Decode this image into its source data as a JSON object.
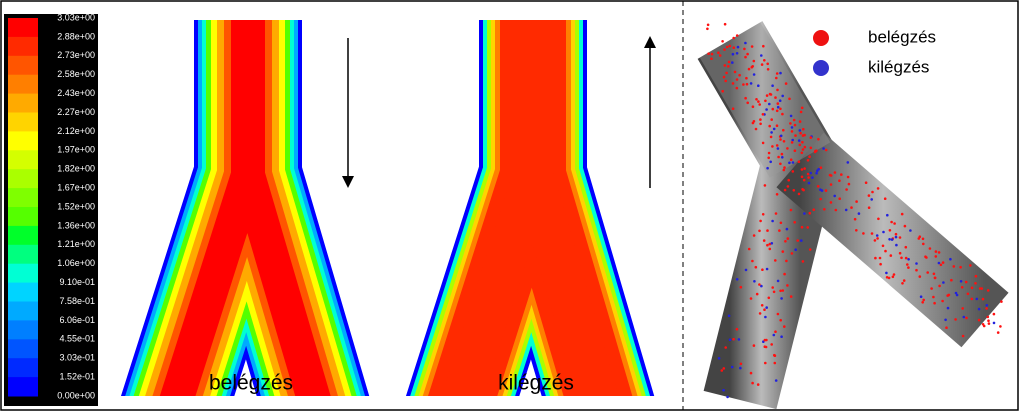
{
  "colorbar": {
    "labels": [
      "3.03e+00",
      "2.88e+00",
      "2.73e+00",
      "2.58e+00",
      "2.43e+00",
      "2.27e+00",
      "2.12e+00",
      "1.97e+00",
      "1.82e+00",
      "1.67e+00",
      "1.52e+00",
      "1.36e+00",
      "1.21e+00",
      "1.06e+00",
      "9.10e-01",
      "7.58e-01",
      "6.06e-01",
      "4.55e-01",
      "3.03e-01",
      "1.52e-01",
      "0.00e+00"
    ]
  },
  "panels": [
    {
      "label": "belégzés"
    },
    {
      "label": "kilégzés"
    }
  ],
  "legend": [
    {
      "label": "belégzés"
    },
    {
      "label": "kilégzés"
    }
  ]
}
